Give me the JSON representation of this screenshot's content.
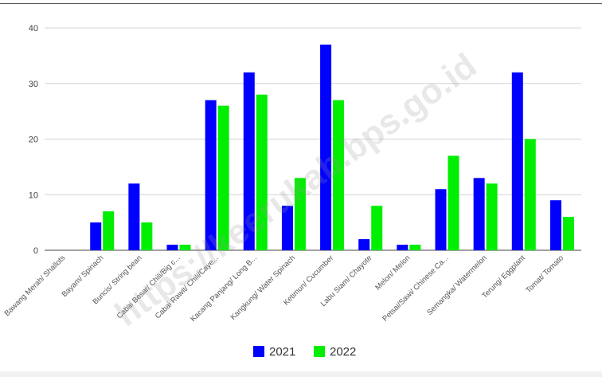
{
  "watermark": "https://keerukab.bps.go.id",
  "chart_data": {
    "type": "bar",
    "categories": [
      "Bawang Merah/ Shallots",
      "Bayam/ Spinach",
      "Buncis/ String bean",
      "Cabai Besar/ Chili/Big c...",
      "Cabai Rawit/ Chili/Caye...",
      "Kacang Panjang/ Long B...",
      "Kangkung/ Water Spinach",
      "Ketimun/ Cucumber",
      "Labu Siam/ Chayote",
      "Melon/ Melon",
      "Petsai/Sawi/ Chinese Ca...",
      "Semangka/ Watermelon",
      "Terung/ Eggplant",
      "Tomat/ Tomato"
    ],
    "series": [
      {
        "name": "2021",
        "color": "#0000ff",
        "values": [
          0,
          5,
          12,
          1,
          27,
          32,
          8,
          37,
          2,
          1,
          11,
          13,
          32,
          9
        ]
      },
      {
        "name": "2022",
        "color": "#00ee00",
        "values": [
          0,
          7,
          5,
          1,
          26,
          28,
          13,
          27,
          8,
          1,
          17,
          12,
          20,
          6
        ]
      }
    ],
    "yticks": [
      0,
      10,
      20,
      30,
      40
    ],
    "ylim": [
      0,
      40
    ],
    "grid": true,
    "legend_position": "bottom-center",
    "title": "",
    "xlabel": "",
    "ylabel": ""
  }
}
